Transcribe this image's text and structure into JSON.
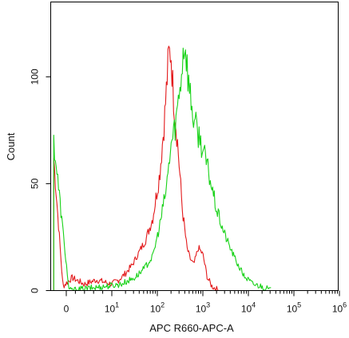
{
  "chart_data": {
    "type": "line",
    "title": "",
    "xlabel": "APC R660-APC-A",
    "ylabel": "Count",
    "x_scale": "biexponential (log with linear region near zero)",
    "grid": false,
    "legend": "none",
    "ylim": [
      0,
      135
    ],
    "yticks": [
      {
        "value": 0,
        "label": "0"
      },
      {
        "value": 50,
        "label": "50"
      },
      {
        "value": 100,
        "label": "100"
      }
    ],
    "xticks": [
      {
        "value": 0,
        "base": "0",
        "exp": ""
      },
      {
        "value": 10,
        "base": "10",
        "exp": "1"
      },
      {
        "value": 100,
        "base": "10",
        "exp": "2"
      },
      {
        "value": 1000,
        "base": "10",
        "exp": "3"
      },
      {
        "value": 10000,
        "base": "10",
        "exp": "4"
      },
      {
        "value": 100000,
        "base": "10",
        "exp": "5"
      },
      {
        "value": 1000000,
        "base": "10",
        "exp": "6"
      }
    ],
    "series": [
      {
        "color": "#e31a1c",
        "points": [
          [
            0.05,
            62
          ],
          [
            0.2,
            2
          ],
          [
            0.35,
            6
          ],
          [
            0.55,
            3
          ],
          [
            0.75,
            5
          ],
          [
            1,
            3
          ],
          [
            1.15,
            5
          ],
          [
            1.3,
            8
          ],
          [
            1.45,
            12
          ],
          [
            1.6,
            18
          ],
          [
            1.75,
            24
          ],
          [
            1.9,
            34
          ],
          [
            2.05,
            54
          ],
          [
            2.15,
            78
          ],
          [
            2.25,
            110
          ],
          [
            2.3,
            112
          ],
          [
            2.35,
            92
          ],
          [
            2.45,
            68
          ],
          [
            2.55,
            38
          ],
          [
            2.65,
            20
          ],
          [
            2.72,
            15
          ],
          [
            2.8,
            12
          ],
          [
            2.9,
            20
          ],
          [
            3.0,
            17
          ],
          [
            3.1,
            6
          ],
          [
            3.2,
            2
          ],
          [
            3.35,
            0
          ]
        ]
      },
      {
        "color": "#19d219",
        "points": [
          [
            0.05,
            70
          ],
          [
            0.3,
            0
          ],
          [
            0.9,
            2
          ],
          [
            1.2,
            3
          ],
          [
            1.5,
            6
          ],
          [
            1.7,
            10
          ],
          [
            1.9,
            16
          ],
          [
            2.05,
            30
          ],
          [
            2.2,
            48
          ],
          [
            2.3,
            68
          ],
          [
            2.4,
            78
          ],
          [
            2.5,
            96
          ],
          [
            2.6,
            118
          ],
          [
            2.7,
            95
          ],
          [
            2.8,
            80
          ],
          [
            2.95,
            70
          ],
          [
            3.1,
            58
          ],
          [
            3.2,
            48
          ],
          [
            3.3,
            38
          ],
          [
            3.45,
            28
          ],
          [
            3.6,
            20
          ],
          [
            3.75,
            13
          ],
          [
            3.9,
            7
          ],
          [
            4.1,
            3
          ],
          [
            4.3,
            2
          ],
          [
            4.5,
            0
          ]
        ]
      }
    ]
  }
}
